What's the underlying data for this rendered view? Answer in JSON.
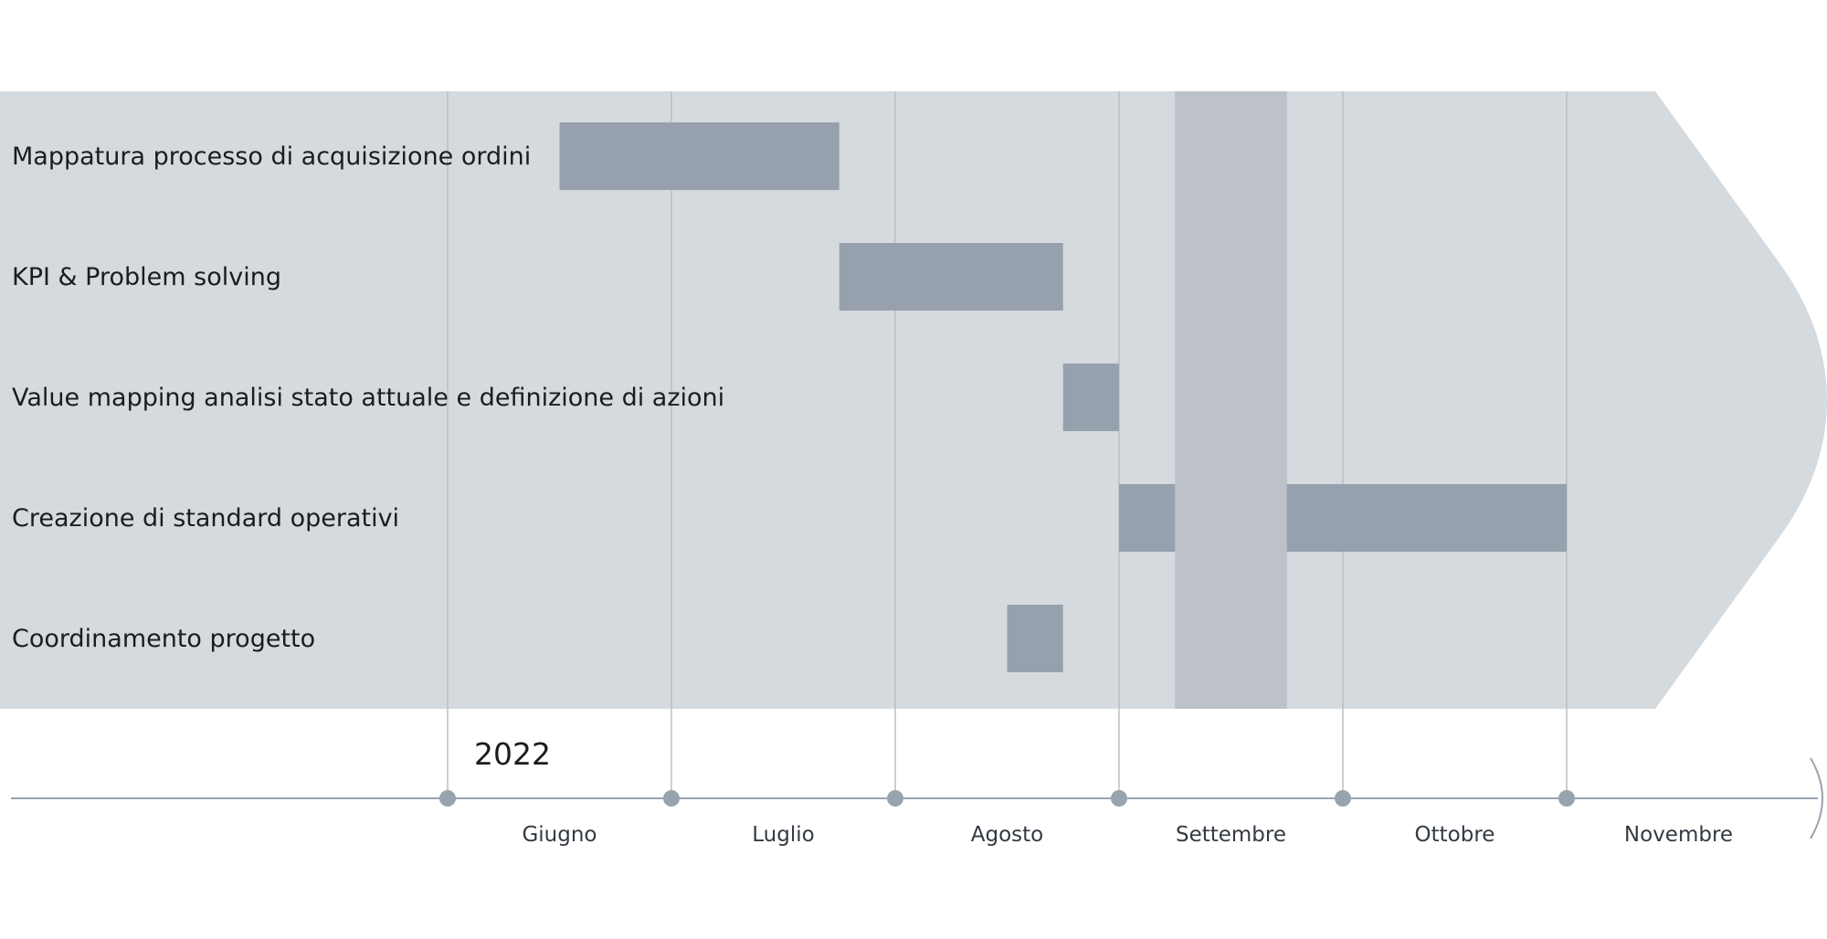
{
  "chart_data": {
    "type": "gantt",
    "year": "2022",
    "months": [
      "Giugno",
      "Luglio",
      "Agosto",
      "Settembre",
      "Ottobre",
      "Novembre"
    ],
    "tasks": [
      {
        "name": "Mappatura processo di acquisizione ordini",
        "start": 0.5,
        "end": 1.75
      },
      {
        "name": "KPI & Problem solving",
        "start": 1.75,
        "end": 2.75
      },
      {
        "name": "Value mapping analisi stato attuale  e definizione di azioni",
        "start": 2.75,
        "end": 3.0
      },
      {
        "name": "Creazione di standard operativi",
        "start": 3.0,
        "end": 5.0
      },
      {
        "name": "Coordinamento progetto",
        "start": 2.5,
        "end": 2.75
      }
    ],
    "highlight_band": {
      "start": 3.25,
      "end": 3.75
    },
    "colors": {
      "panel": "#d5dadf",
      "bar": "#96a1ad",
      "highlight": "#bcc2c8",
      "gridline": "#b9c0c7",
      "axis": "#98a3b0",
      "tick_dot": "#98a3b0"
    }
  }
}
